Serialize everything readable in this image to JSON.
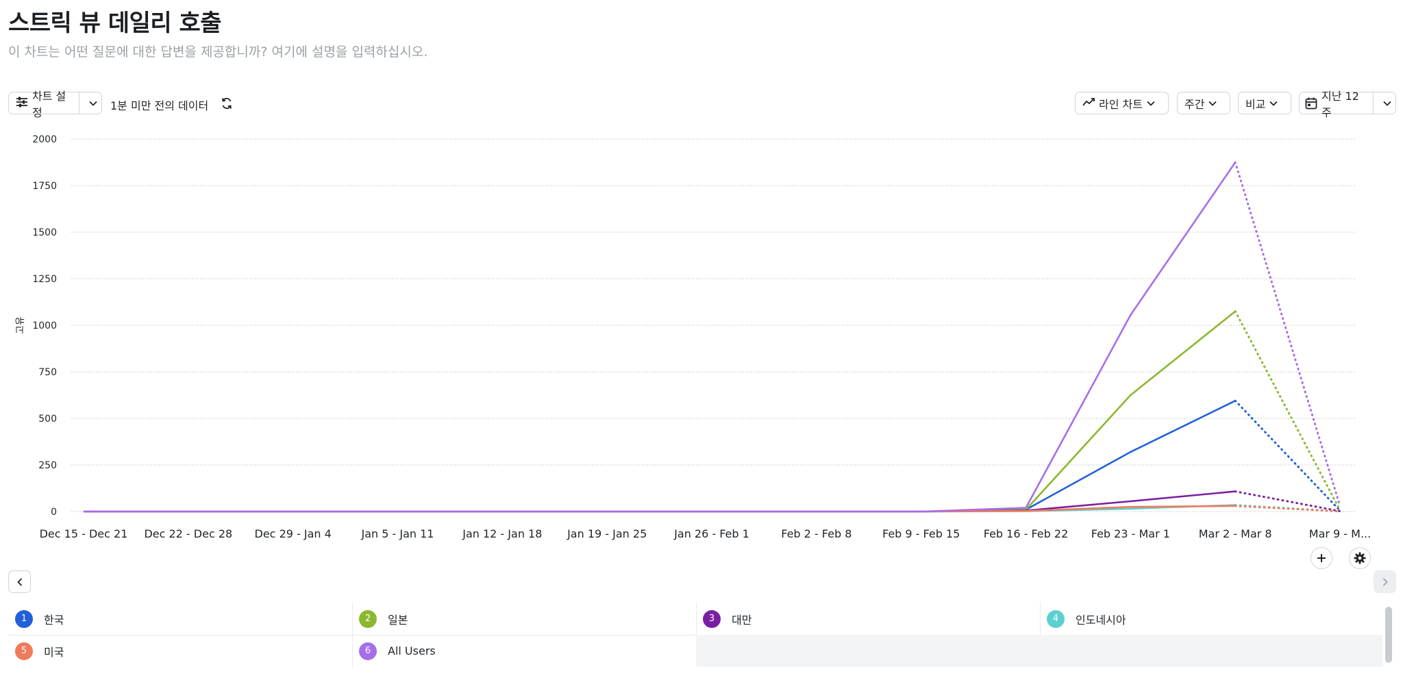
{
  "header": {
    "title": "스트릭 뷰 데일리 호출",
    "subtitle": "이 차트는 어떤 질문에 대한 답변을 제공합니까? 여기에 설명을 입력하십시오."
  },
  "toolbar": {
    "chart_settings_label": "차트 설정",
    "data_freshness": "1분 미만 전의 데이터",
    "chart_type_label": "라인 차트",
    "interval_label": "주간",
    "compare_label": "비교",
    "date_range_label": "지난 12주"
  },
  "chart_data": {
    "type": "line",
    "ylabel": "고유",
    "ylim": [
      0,
      2000
    ],
    "yticks": [
      0,
      250,
      500,
      750,
      1000,
      1250,
      1500,
      1750,
      2000
    ],
    "grid": true,
    "categories": [
      "Dec 15 - Dec 21",
      "Dec 22 - Dec 28",
      "Dec 29 - Jan 4",
      "Jan 5 - Jan 11",
      "Jan 12 - Jan 18",
      "Jan 19 - Jan 25",
      "Jan 26 - Feb 1",
      "Feb 2 - Feb 8",
      "Feb 9 - Feb 15",
      "Feb 16 - Feb 22",
      "Feb 23 - Mar 1",
      "Mar 2 - Mar 8",
      "Mar 9 - M..."
    ],
    "incomplete_last_period": true,
    "series": [
      {
        "name": "한국",
        "color": "#2160d9",
        "values": [
          0,
          0,
          0,
          0,
          0,
          0,
          0,
          0,
          0,
          10,
          320,
          595,
          5
        ]
      },
      {
        "name": "일본",
        "color": "#8ab82e",
        "values": [
          0,
          0,
          0,
          0,
          0,
          0,
          0,
          0,
          0,
          10,
          625,
          1075,
          8
        ]
      },
      {
        "name": "대만",
        "color": "#7b1fa2",
        "values": [
          0,
          0,
          0,
          0,
          0,
          0,
          0,
          0,
          0,
          5,
          55,
          108,
          2
        ]
      },
      {
        "name": "인도네시아",
        "color": "#5ccfd0",
        "values": [
          0,
          0,
          0,
          0,
          0,
          0,
          0,
          0,
          0,
          2,
          15,
          35,
          1
        ]
      },
      {
        "name": "미국",
        "color": "#f07a5c",
        "values": [
          0,
          0,
          0,
          0,
          0,
          0,
          0,
          0,
          0,
          3,
          25,
          30,
          1
        ]
      },
      {
        "name": "All Users",
        "color": "#a66ee8",
        "values": [
          0,
          0,
          0,
          0,
          0,
          0,
          0,
          0,
          0,
          20,
          1055,
          1875,
          30
        ]
      }
    ]
  },
  "legend": {
    "items": [
      {
        "index": "1",
        "label": "한국",
        "color": "#2160d9"
      },
      {
        "index": "2",
        "label": "일본",
        "color": "#8ab82e"
      },
      {
        "index": "3",
        "label": "대만",
        "color": "#7b1fa2"
      },
      {
        "index": "4",
        "label": "인도네시아",
        "color": "#5ccfd0"
      },
      {
        "index": "5",
        "label": "미국",
        "color": "#f07a5c"
      },
      {
        "index": "6",
        "label": "All Users",
        "color": "#a66ee8"
      }
    ]
  },
  "icons": {
    "settings": "sliders-icon",
    "refresh": "refresh-icon",
    "line_chart": "line-chart-icon",
    "calendar": "calendar-icon",
    "add": "plus-icon",
    "gear": "gear-icon",
    "prev": "chevron-left-icon",
    "next": "chevron-right-icon"
  }
}
